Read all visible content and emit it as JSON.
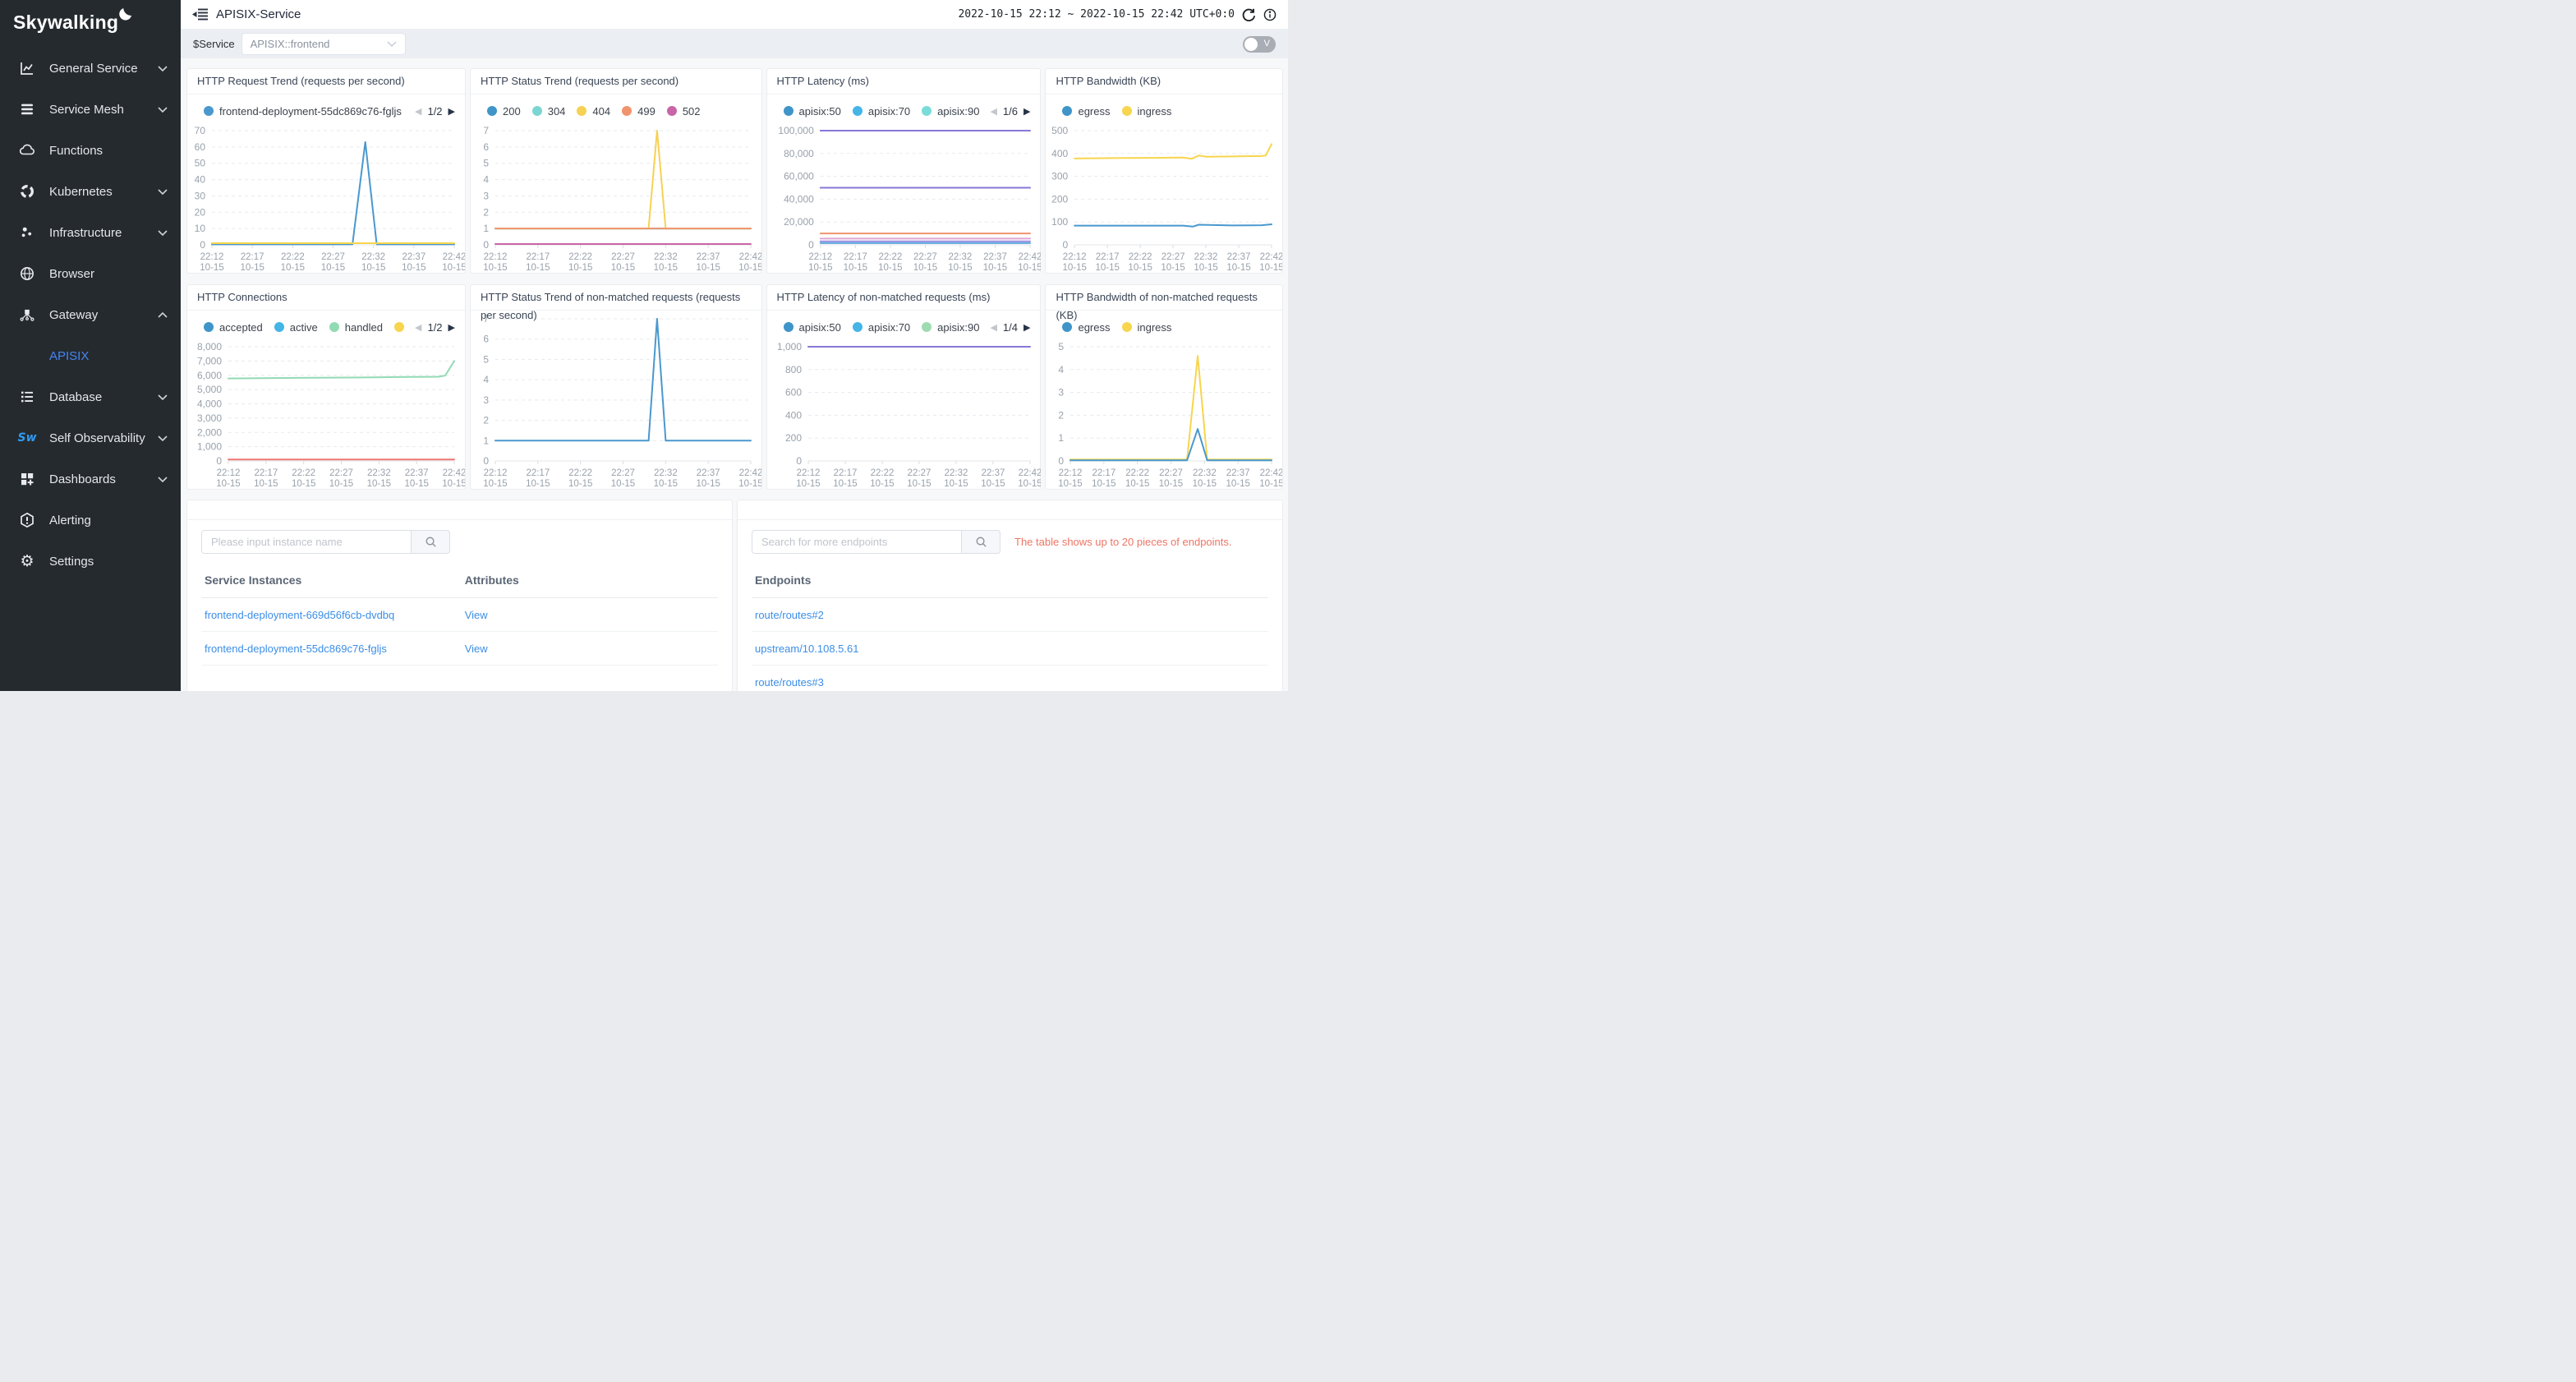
{
  "sidebar": {
    "logo_text": "Skywalking",
    "items": [
      {
        "label": "General Service",
        "icon": "chart",
        "chevron": "down",
        "child": false,
        "active": false
      },
      {
        "label": "Service Mesh",
        "icon": "mesh",
        "chevron": "down",
        "child": false,
        "active": false
      },
      {
        "label": "Functions",
        "icon": "cloud",
        "chevron": null,
        "child": false,
        "active": false
      },
      {
        "label": "Kubernetes",
        "icon": "kubernetes",
        "chevron": "down",
        "child": false,
        "active": false
      },
      {
        "label": "Infrastructure",
        "icon": "infrastructure",
        "chevron": "down",
        "child": false,
        "active": false
      },
      {
        "label": "Browser",
        "icon": "globe",
        "chevron": null,
        "child": false,
        "active": false
      },
      {
        "label": "Gateway",
        "icon": "gateway",
        "chevron": "up",
        "child": false,
        "active": false
      },
      {
        "label": "APISIX",
        "icon": null,
        "chevron": null,
        "child": true,
        "active": true
      },
      {
        "label": "Database",
        "icon": "database",
        "chevron": "down",
        "child": false,
        "active": false
      },
      {
        "label": "Self Observability",
        "icon": "sw",
        "chevron": "down",
        "child": false,
        "active": false
      },
      {
        "label": "Dashboards",
        "icon": "dashboards",
        "chevron": "down",
        "child": false,
        "active": false
      },
      {
        "label": "Alerting",
        "icon": "alert",
        "chevron": null,
        "child": false,
        "active": false
      },
      {
        "label": "Settings",
        "icon": "gear",
        "chevron": null,
        "child": false,
        "active": false
      }
    ]
  },
  "header": {
    "title": "APISIX-Service",
    "time_range": "2022-10-15 22:12 ~ 2022-10-15 22:42 UTC+0:0"
  },
  "toolbar": {
    "service_label": "$Service",
    "service_value": "APISIX::frontend",
    "toggle_label": "V"
  },
  "chart_data": {
    "type": "line",
    "x_axis": [
      [
        "22:12",
        "10-15"
      ],
      [
        "22:17",
        "10-15"
      ],
      [
        "22:22",
        "10-15"
      ],
      [
        "22:27",
        "10-15"
      ],
      [
        "22:32",
        "10-15"
      ],
      [
        "22:37",
        "10-15"
      ],
      [
        "22:42",
        "10-15"
      ]
    ],
    "panels": [
      {
        "title": "HTTP Request Trend (requests per second)",
        "pagination": "1/2",
        "legend": [
          {
            "label": "frontend-deployment-55dc869c76-fgljs",
            "color": "#4a98ce",
            "clip": true
          }
        ],
        "ymax": 70,
        "yticks": [
          "0",
          "10",
          "20",
          "30",
          "40",
          "50",
          "60",
          "70"
        ],
        "series": [
          {
            "name": "frontend-deployment-55dc869c76-fgljs",
            "color": "#4a98ce",
            "points": [
              [
                0,
                0.3
              ],
              [
                0.58,
                0.3
              ],
              [
                0.633,
                63
              ],
              [
                0.68,
                0.3
              ],
              [
                1,
                0.3
              ]
            ]
          },
          {
            "name": "",
            "color": "#f7d54e",
            "points": [
              [
                0,
                1
              ],
              [
                1,
                1
              ]
            ]
          }
        ]
      },
      {
        "title": "HTTP Status Trend (requests per second)",
        "pagination": null,
        "legend": [
          {
            "label": "200",
            "color": "#3f95c8"
          },
          {
            "label": "304",
            "color": "#7bd6d3"
          },
          {
            "label": "404",
            "color": "#f7d154"
          },
          {
            "label": "499",
            "color": "#f0946e"
          },
          {
            "label": "502",
            "color": "#c765a7"
          }
        ],
        "ymax": 7,
        "yticks": [
          "0",
          "1",
          "2",
          "3",
          "4",
          "5",
          "6",
          "7"
        ],
        "series": [
          {
            "name": "200",
            "color": "#3f95c8",
            "points": [
              [
                0,
                1
              ],
              [
                1,
                1
              ]
            ]
          },
          {
            "name": "304",
            "color": "#7bd6d3",
            "points": [
              [
                0,
                1
              ],
              [
                1,
                1
              ]
            ]
          },
          {
            "name": "404",
            "color": "#f7d154",
            "points": [
              [
                0,
                1
              ],
              [
                0.6,
                1
              ],
              [
                0.633,
                7
              ],
              [
                0.667,
                1
              ],
              [
                1,
                1
              ]
            ]
          },
          {
            "name": "499",
            "color": "#f0946e",
            "points": [
              [
                0,
                1
              ],
              [
                1,
                1
              ]
            ]
          },
          {
            "name": "502",
            "color": "#c765a7",
            "points": [
              [
                0,
                0.05
              ],
              [
                1,
                0.05
              ]
            ]
          }
        ]
      },
      {
        "title": "HTTP Latency (ms)",
        "pagination": "1/6",
        "legend": [
          {
            "label": "apisix:50",
            "color": "#3f95c8"
          },
          {
            "label": "apisix:70",
            "color": "#45b5e8"
          },
          {
            "label": "apisix:90",
            "color": "#7adcd8"
          }
        ],
        "ymax": 100000,
        "yticks": [
          "0",
          "20,000",
          "40,000",
          "60,000",
          "80,000",
          "100,000"
        ],
        "series": [
          {
            "name": "",
            "color": "#8678d9",
            "points": [
              [
                0,
                100000
              ],
              [
                1,
                100000
              ]
            ]
          },
          {
            "name": "",
            "color": "#8678d9",
            "points": [
              [
                0,
                50000
              ],
              [
                1,
                50000
              ]
            ]
          },
          {
            "name": "",
            "color": "#f0946e",
            "points": [
              [
                0,
                10000
              ],
              [
                1,
                10000
              ]
            ]
          },
          {
            "name": "",
            "color": "#dda6d4",
            "points": [
              [
                0,
                5500
              ],
              [
                1,
                5500
              ]
            ]
          },
          {
            "name": "",
            "color": "#9a8ce0",
            "points": [
              [
                0,
                3000
              ],
              [
                1,
                3000
              ]
            ]
          },
          {
            "name": "",
            "color": "#5fa9dd",
            "points": [
              [
                0,
                1500
              ],
              [
                1,
                1500
              ]
            ]
          }
        ]
      },
      {
        "title": "HTTP Bandwidth (KB)",
        "pagination": null,
        "legend": [
          {
            "label": "egress",
            "color": "#3f95c8"
          },
          {
            "label": "ingress",
            "color": "#f7d54e"
          }
        ],
        "ymax": 500,
        "yticks": [
          "0",
          "100",
          "200",
          "300",
          "400",
          "500"
        ],
        "series": [
          {
            "name": "ingress",
            "color": "#f7d54e",
            "points": [
              [
                0,
                378
              ],
              [
                0.2,
                380
              ],
              [
                0.4,
                381
              ],
              [
                0.55,
                382
              ],
              [
                0.595,
                377
              ],
              [
                0.63,
                391
              ],
              [
                0.67,
                386
              ],
              [
                0.8,
                387
              ],
              [
                0.95,
                389
              ],
              [
                0.97,
                391
              ],
              [
                1,
                441
              ]
            ]
          },
          {
            "name": "egress",
            "color": "#4a98ce",
            "points": [
              [
                0,
                84
              ],
              [
                0.55,
                84
              ],
              [
                0.6,
                80
              ],
              [
                0.63,
                88
              ],
              [
                0.8,
                85
              ],
              [
                0.95,
                86
              ],
              [
                1,
                90
              ]
            ]
          }
        ]
      },
      {
        "title": "HTTP Connections",
        "pagination": "1/2",
        "legend": [
          {
            "label": "accepted",
            "color": "#3f95c8"
          },
          {
            "label": "active",
            "color": "#45b5e8"
          },
          {
            "label": "handled",
            "color": "#92dab4"
          },
          {
            "label": "",
            "color": "#f7d54e"
          }
        ],
        "ymax": 8000,
        "yticks": [
          "0",
          "1,000",
          "2,000",
          "3,000",
          "4,000",
          "5,000",
          "6,000",
          "7,000",
          "8,000"
        ],
        "series": [
          {
            "name": "handled",
            "color": "#92dab4",
            "points": [
              [
                0,
                5780
              ],
              [
                0.3,
                5820
              ],
              [
                0.6,
                5850
              ],
              [
                0.8,
                5880
              ],
              [
                0.93,
                5900
              ],
              [
                0.96,
                5980
              ],
              [
                1,
                7000
              ]
            ]
          },
          {
            "name": "",
            "color": "#ed7672",
            "points": [
              [
                0,
                100
              ],
              [
                1,
                100
              ]
            ]
          }
        ]
      },
      {
        "title": "HTTP Status Trend of non-matched requests (requests per second)",
        "pagination": null,
        "legend": [],
        "ymax": 7,
        "yticks": [
          "0",
          "1",
          "2",
          "3",
          "4",
          "5",
          "6",
          "7"
        ],
        "series": [
          {
            "name": "",
            "color": "#4a98ce",
            "points": [
              [
                0,
                1
              ],
              [
                0.6,
                1
              ],
              [
                0.633,
                7
              ],
              [
                0.667,
                1
              ],
              [
                1,
                1
              ]
            ]
          }
        ]
      },
      {
        "title": "HTTP Latency of non-matched requests (ms)",
        "pagination": "1/4",
        "legend": [
          {
            "label": "apisix:50",
            "color": "#3f95c8"
          },
          {
            "label": "apisix:70",
            "color": "#45b5e8"
          },
          {
            "label": "apisix:90",
            "color": "#9edbb1"
          }
        ],
        "ymax": 1000,
        "yticks": [
          "0",
          "200",
          "400",
          "600",
          "800",
          "1,000"
        ],
        "series": [
          {
            "name": "",
            "color": "#8678d9",
            "points": [
              [
                0,
                1000
              ],
              [
                1,
                1000
              ]
            ]
          }
        ]
      },
      {
        "title": "HTTP Bandwidth of non-matched requests (KB)",
        "pagination": null,
        "legend": [
          {
            "label": "egress",
            "color": "#3f95c8"
          },
          {
            "label": "ingress",
            "color": "#f7d54e"
          }
        ],
        "ymax": 5,
        "yticks": [
          "0",
          "1",
          "2",
          "3",
          "4",
          "5"
        ],
        "series": [
          {
            "name": "ingress",
            "color": "#f7d54e",
            "points": [
              [
                0,
                0.06
              ],
              [
                0.58,
                0.06
              ],
              [
                0.633,
                4.6
              ],
              [
                0.68,
                0.06
              ],
              [
                1,
                0.06
              ]
            ]
          },
          {
            "name": "egress",
            "color": "#4a98ce",
            "points": [
              [
                0,
                0.03
              ],
              [
                0.58,
                0.03
              ],
              [
                0.633,
                1.4
              ],
              [
                0.68,
                0.03
              ],
              [
                1,
                0.03
              ]
            ]
          }
        ]
      }
    ]
  },
  "instances_card": {
    "search_placeholder": "Please input instance name",
    "columns": [
      "Service Instances",
      "Attributes"
    ],
    "rows": [
      {
        "instance": "frontend-deployment-669d56f6cb-dvdbq",
        "attribute": "View"
      },
      {
        "instance": "frontend-deployment-55dc869c76-fgljs",
        "attribute": "View"
      }
    ]
  },
  "endpoints_card": {
    "search_placeholder": "Search for more endpoints",
    "note": "The table shows up to 20 pieces of endpoints.",
    "column": "Endpoints",
    "rows": [
      "route/routes#2",
      "upstream/10.108.5.61",
      "route/routes#3"
    ]
  }
}
